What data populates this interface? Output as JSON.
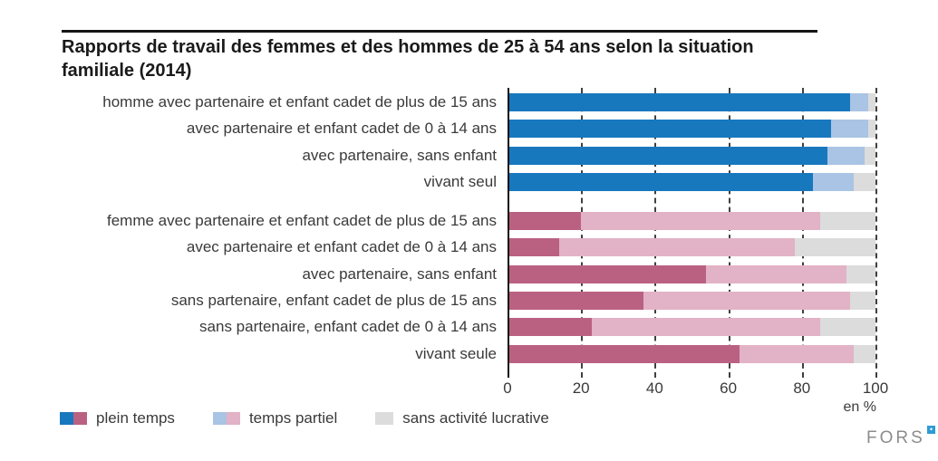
{
  "title": "Rapports de travail des femmes et des hommes de 25 à 54 ans selon la situation familiale (2014)",
  "axis": {
    "unit": "en %"
  },
  "legend": [
    {
      "label": "plein temps",
      "swatch": [
        "#1878be",
        "#ba6182"
      ]
    },
    {
      "label": "temps partiel",
      "swatch": [
        "#a9c4e4",
        "#e2b2c6"
      ]
    },
    {
      "label": "sans activité lucrative",
      "swatch": [
        "#dcdcdc"
      ]
    }
  ],
  "logo": {
    "text": "FORS"
  },
  "colors": {
    "men_full": "#1878be",
    "men_part": "#a9c4e4",
    "women_full": "#ba6182",
    "women_part": "#e2b2c6",
    "inactive": "#dcdcdc",
    "grid": "#404040",
    "title": "#1a1a1a"
  },
  "chart_data": {
    "type": "bar",
    "orientation": "horizontal-stacked",
    "title": "Rapports de travail des femmes et des hommes de 25 à 54 ans selon la situation familiale (2014)",
    "unit": "%",
    "xlim": [
      0,
      100
    ],
    "x_ticks": [
      0,
      20,
      40,
      60,
      80,
      100
    ],
    "xlabel": "en %",
    "grid": "dashed-vertical",
    "legend_position": "bottom-left",
    "series_names": [
      "plein temps",
      "temps partiel",
      "sans activité lucrative"
    ],
    "color_none": "#dcdcdc",
    "groups": [
      {
        "group": "homme",
        "color_full": "#1878be",
        "color_part": "#a9c4e4",
        "rows": [
          {
            "label": "homme avec partenaire et enfant cadet de plus de 15 ans",
            "values": [
              93,
              5,
              2
            ]
          },
          {
            "label": "avec partenaire et enfant cadet de 0 à 14 ans",
            "values": [
              88,
              10,
              2
            ]
          },
          {
            "label": "avec partenaire, sans enfant",
            "values": [
              87,
              10,
              3
            ]
          },
          {
            "label": "vivant seul",
            "values": [
              83,
              11,
              6
            ]
          }
        ]
      },
      {
        "group": "femme",
        "color_full": "#ba6182",
        "color_part": "#e2b2c6",
        "rows": [
          {
            "label": "femme avec partenaire et enfant cadet de plus de 15 ans",
            "values": [
              20,
              65,
              15
            ]
          },
          {
            "label": "avec partenaire et enfant cadet de 0 à 14 ans",
            "values": [
              14,
              64,
              22
            ]
          },
          {
            "label": "avec partenaire, sans enfant",
            "values": [
              54,
              38,
              8
            ]
          },
          {
            "label": "sans partenaire, enfant cadet de plus de 15 ans",
            "values": [
              37,
              56,
              7
            ]
          },
          {
            "label": "sans partenaire, enfant cadet de 0 à 14 ans",
            "values": [
              23,
              62,
              15
            ]
          },
          {
            "label": "vivant seule",
            "values": [
              63,
              31,
              6
            ]
          }
        ]
      }
    ]
  }
}
